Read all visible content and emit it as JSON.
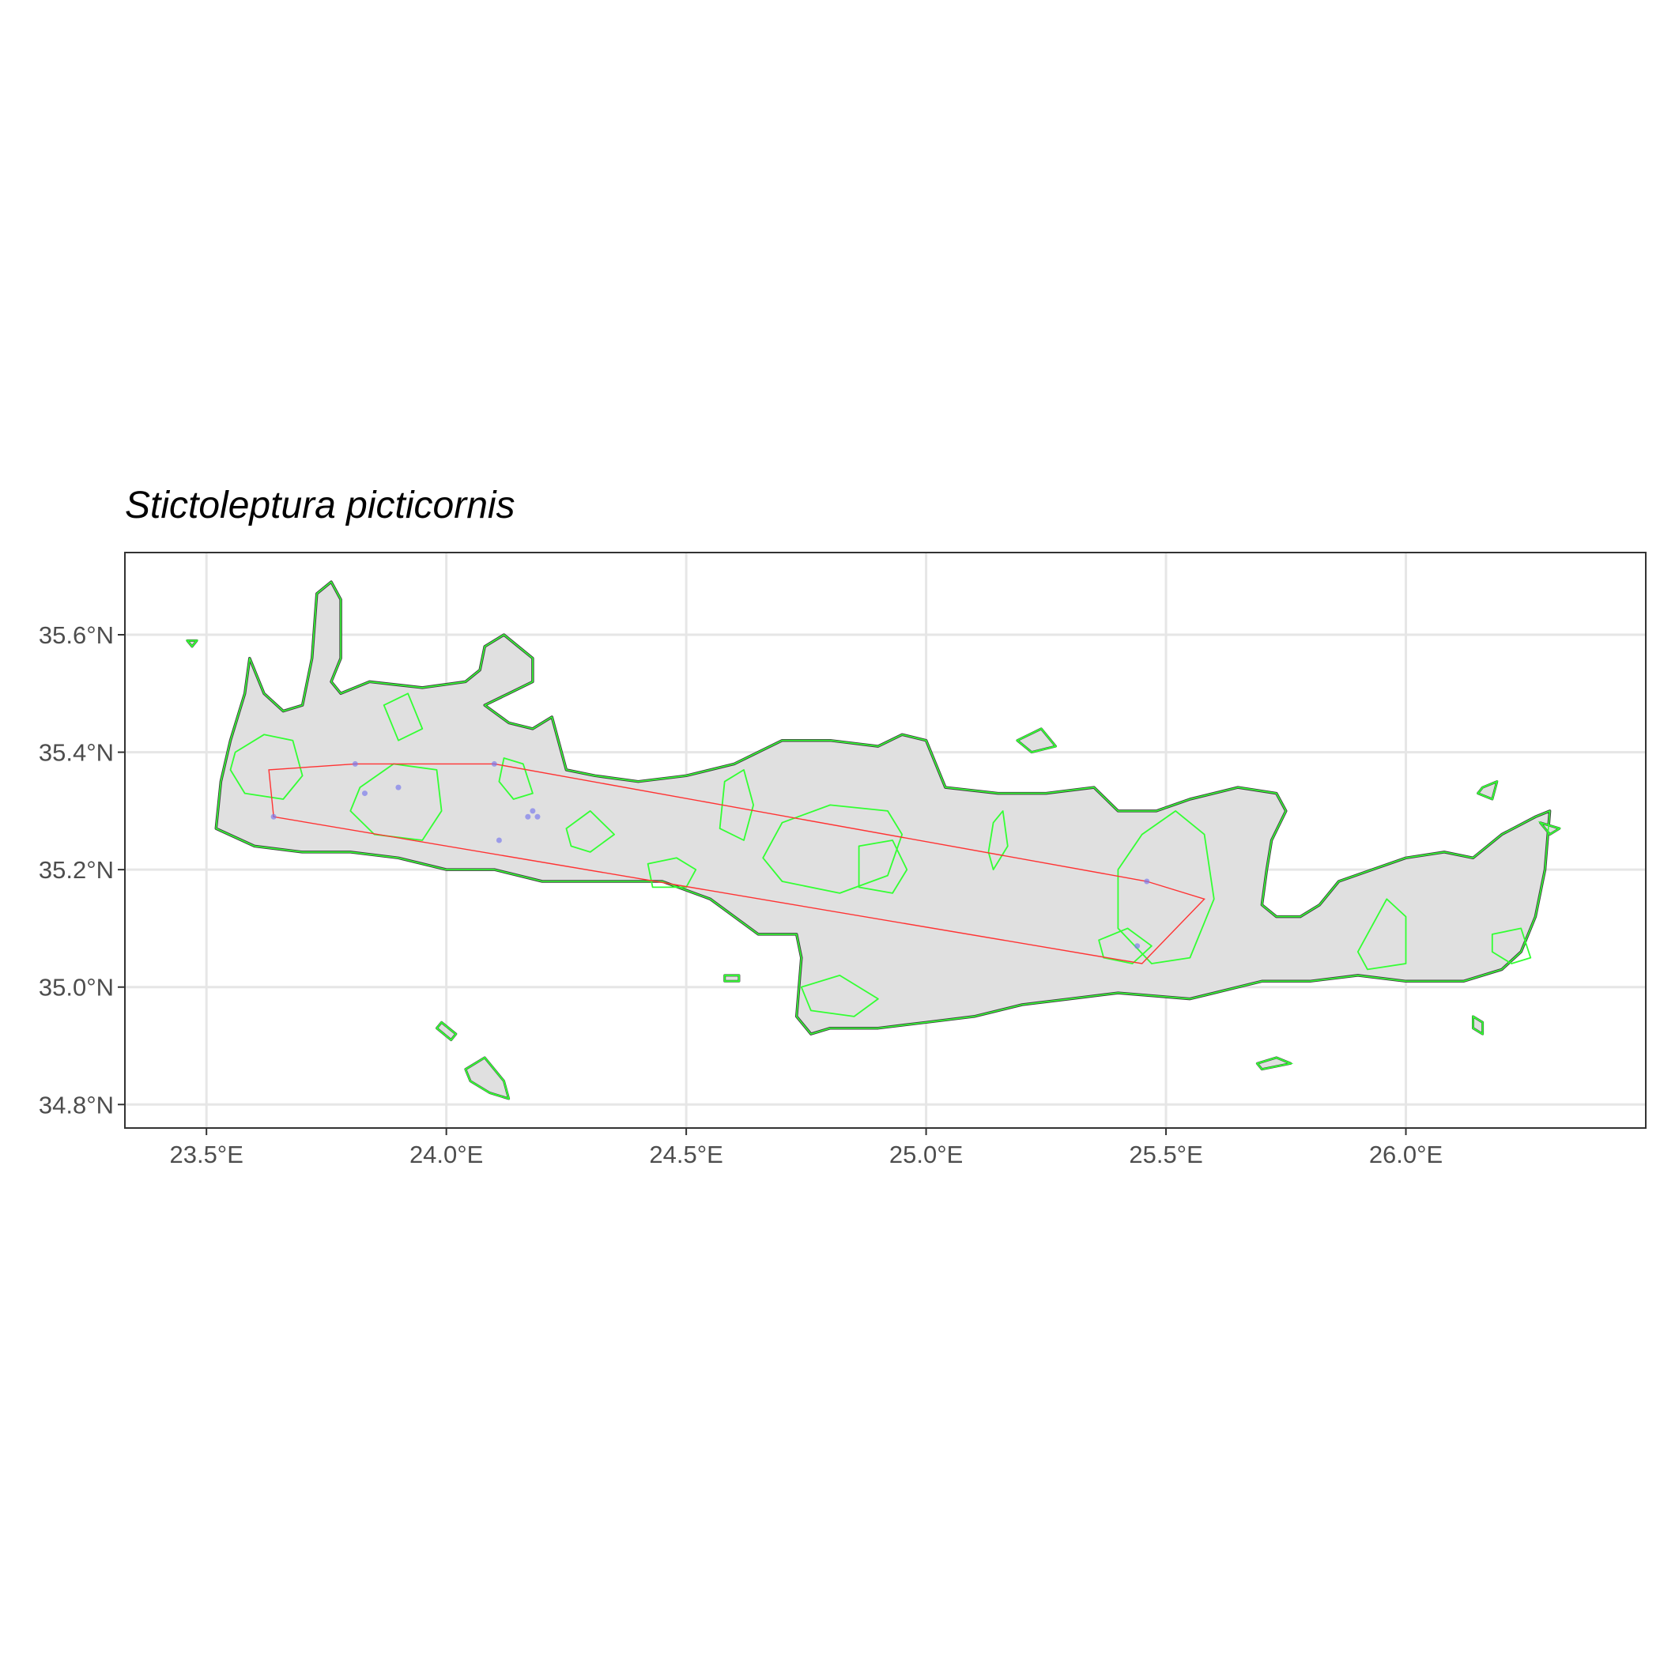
{
  "title": "Stictoleptura picticornis",
  "map": {
    "extent": {
      "lon_min": 23.33,
      "lon_max": 26.5,
      "lat_min": 34.76,
      "lat_max": 35.74
    },
    "x_ticks": [
      {
        "value": 23.5,
        "label": "23.5°E"
      },
      {
        "value": 24.0,
        "label": "24.0°E"
      },
      {
        "value": 24.5,
        "label": "24.5°E"
      },
      {
        "value": 25.0,
        "label": "25.0°E"
      },
      {
        "value": 25.5,
        "label": "25.5°E"
      },
      {
        "value": 26.0,
        "label": "26.0°E"
      }
    ],
    "y_ticks": [
      {
        "value": 34.8,
        "label": "34.8°N"
      },
      {
        "value": 35.0,
        "label": "35.0°N"
      },
      {
        "value": 35.2,
        "label": "35.2°N"
      },
      {
        "value": 35.4,
        "label": "35.4°N"
      },
      {
        "value": 35.6,
        "label": "35.6°N"
      }
    ],
    "grid": true,
    "colors": {
      "land_fill": "#e0e0e0",
      "coastline": "#404040",
      "protected_areas": "#33ff33",
      "range_hull": "#ff3333",
      "occurrences": "#7777ee",
      "gridline": "#e6e6e6",
      "panel_border": "#333333"
    },
    "crete_outline": [
      [
        23.59,
        35.56
      ],
      [
        23.62,
        35.5
      ],
      [
        23.66,
        35.47
      ],
      [
        23.7,
        35.48
      ],
      [
        23.72,
        35.56
      ],
      [
        23.73,
        35.67
      ],
      [
        23.76,
        35.69
      ],
      [
        23.78,
        35.66
      ],
      [
        23.78,
        35.56
      ],
      [
        23.76,
        35.52
      ],
      [
        23.78,
        35.5
      ],
      [
        23.84,
        35.52
      ],
      [
        23.95,
        35.51
      ],
      [
        24.04,
        35.52
      ],
      [
        24.07,
        35.54
      ],
      [
        24.08,
        35.58
      ],
      [
        24.12,
        35.6
      ],
      [
        24.15,
        35.58
      ],
      [
        24.18,
        35.56
      ],
      [
        24.18,
        35.52
      ],
      [
        24.13,
        35.5
      ],
      [
        24.08,
        35.48
      ],
      [
        24.13,
        35.45
      ],
      [
        24.18,
        35.44
      ],
      [
        24.22,
        35.46
      ],
      [
        24.25,
        35.37
      ],
      [
        24.31,
        35.36
      ],
      [
        24.4,
        35.35
      ],
      [
        24.5,
        35.36
      ],
      [
        24.6,
        35.38
      ],
      [
        24.7,
        35.42
      ],
      [
        24.8,
        35.42
      ],
      [
        24.9,
        35.41
      ],
      [
        24.95,
        35.43
      ],
      [
        25.0,
        35.42
      ],
      [
        25.04,
        35.34
      ],
      [
        25.15,
        35.33
      ],
      [
        25.25,
        35.33
      ],
      [
        25.35,
        35.34
      ],
      [
        25.4,
        35.3
      ],
      [
        25.48,
        35.3
      ],
      [
        25.55,
        35.32
      ],
      [
        25.65,
        35.34
      ],
      [
        25.73,
        35.33
      ],
      [
        25.75,
        35.3
      ],
      [
        25.72,
        35.25
      ],
      [
        25.71,
        35.2
      ],
      [
        25.7,
        35.14
      ],
      [
        25.73,
        35.12
      ],
      [
        25.78,
        35.12
      ],
      [
        25.82,
        35.14
      ],
      [
        25.86,
        35.18
      ],
      [
        25.93,
        35.2
      ],
      [
        26.0,
        35.22
      ],
      [
        26.08,
        35.23
      ],
      [
        26.14,
        35.22
      ],
      [
        26.2,
        35.26
      ],
      [
        26.27,
        35.29
      ],
      [
        26.3,
        35.3
      ],
      [
        26.29,
        35.2
      ],
      [
        26.27,
        35.12
      ],
      [
        26.24,
        35.06
      ],
      [
        26.2,
        35.03
      ],
      [
        26.12,
        35.01
      ],
      [
        26.0,
        35.01
      ],
      [
        25.9,
        35.02
      ],
      [
        25.8,
        35.01
      ],
      [
        25.7,
        35.01
      ],
      [
        25.55,
        34.98
      ],
      [
        25.4,
        34.99
      ],
      [
        25.3,
        34.98
      ],
      [
        25.2,
        34.97
      ],
      [
        25.1,
        34.95
      ],
      [
        25.0,
        34.94
      ],
      [
        24.9,
        34.93
      ],
      [
        24.8,
        34.93
      ],
      [
        24.76,
        34.92
      ],
      [
        24.73,
        34.95
      ],
      [
        24.74,
        35.05
      ],
      [
        24.73,
        35.09
      ],
      [
        24.65,
        35.09
      ],
      [
        24.55,
        35.15
      ],
      [
        24.45,
        35.18
      ],
      [
        24.35,
        35.18
      ],
      [
        24.2,
        35.18
      ],
      [
        24.1,
        35.2
      ],
      [
        24.0,
        35.2
      ],
      [
        23.9,
        35.22
      ],
      [
        23.8,
        35.23
      ],
      [
        23.7,
        35.23
      ],
      [
        23.6,
        35.24
      ],
      [
        23.52,
        35.27
      ],
      [
        23.53,
        35.35
      ],
      [
        23.55,
        35.42
      ],
      [
        23.58,
        35.5
      ]
    ],
    "islets": [
      [
        [
          23.98,
          34.93
        ],
        [
          24.01,
          34.91
        ],
        [
          24.02,
          34.92
        ],
        [
          23.99,
          34.94
        ]
      ],
      [
        [
          24.04,
          34.86
        ],
        [
          24.08,
          34.88
        ],
        [
          24.12,
          34.84
        ],
        [
          24.13,
          34.81
        ],
        [
          24.09,
          34.82
        ],
        [
          24.05,
          34.84
        ]
      ],
      [
        [
          24.58,
          35.02
        ],
        [
          24.61,
          35.02
        ],
        [
          24.61,
          35.01
        ],
        [
          24.58,
          35.01
        ]
      ],
      [
        [
          25.19,
          35.42
        ],
        [
          25.24,
          35.44
        ],
        [
          25.27,
          35.41
        ],
        [
          25.22,
          35.4
        ]
      ],
      [
        [
          25.69,
          34.87
        ],
        [
          25.73,
          34.88
        ],
        [
          25.76,
          34.87
        ],
        [
          25.7,
          34.86
        ]
      ],
      [
        [
          26.14,
          34.95
        ],
        [
          26.16,
          34.94
        ],
        [
          26.16,
          34.92
        ],
        [
          26.14,
          34.93
        ]
      ],
      [
        [
          26.16,
          35.34
        ],
        [
          26.19,
          35.35
        ],
        [
          26.18,
          35.32
        ],
        [
          26.15,
          35.33
        ]
      ],
      [
        [
          26.28,
          35.28
        ],
        [
          26.32,
          35.27
        ],
        [
          26.3,
          35.26
        ]
      ],
      [
        [
          23.46,
          35.59
        ],
        [
          23.48,
          35.59
        ],
        [
          23.47,
          35.58
        ]
      ]
    ],
    "protected_areas": [
      [
        [
          23.56,
          35.4
        ],
        [
          23.62,
          35.43
        ],
        [
          23.68,
          35.42
        ],
        [
          23.7,
          35.36
        ],
        [
          23.66,
          35.32
        ],
        [
          23.58,
          35.33
        ],
        [
          23.55,
          35.37
        ]
      ],
      [
        [
          23.82,
          35.34
        ],
        [
          23.89,
          35.38
        ],
        [
          23.98,
          35.37
        ],
        [
          23.99,
          35.3
        ],
        [
          23.95,
          35.25
        ],
        [
          23.85,
          35.26
        ],
        [
          23.8,
          35.3
        ]
      ],
      [
        [
          24.12,
          35.39
        ],
        [
          24.16,
          35.38
        ],
        [
          24.18,
          35.33
        ],
        [
          24.14,
          35.32
        ],
        [
          24.11,
          35.35
        ]
      ],
      [
        [
          24.25,
          35.27
        ],
        [
          24.3,
          35.3
        ],
        [
          24.35,
          35.26
        ],
        [
          24.3,
          35.23
        ],
        [
          24.26,
          35.24
        ]
      ],
      [
        [
          24.42,
          35.21
        ],
        [
          24.48,
          35.22
        ],
        [
          24.52,
          35.2
        ],
        [
          24.5,
          35.17
        ],
        [
          24.43,
          35.17
        ]
      ],
      [
        [
          24.58,
          35.35
        ],
        [
          24.62,
          35.37
        ],
        [
          24.64,
          35.31
        ],
        [
          24.62,
          35.25
        ],
        [
          24.57,
          35.27
        ]
      ],
      [
        [
          24.7,
          35.28
        ],
        [
          24.8,
          35.31
        ],
        [
          24.92,
          35.3
        ],
        [
          24.95,
          35.26
        ],
        [
          24.92,
          35.19
        ],
        [
          24.82,
          35.16
        ],
        [
          24.7,
          35.18
        ],
        [
          24.66,
          35.22
        ]
      ],
      [
        [
          24.86,
          35.24
        ],
        [
          24.93,
          35.25
        ],
        [
          24.96,
          35.2
        ],
        [
          24.93,
          35.16
        ],
        [
          24.86,
          35.17
        ]
      ],
      [
        [
          25.4,
          35.2
        ],
        [
          25.45,
          35.26
        ],
        [
          25.52,
          35.3
        ],
        [
          25.58,
          35.26
        ],
        [
          25.6,
          35.15
        ],
        [
          25.55,
          35.05
        ],
        [
          25.47,
          35.04
        ],
        [
          25.4,
          35.1
        ]
      ],
      [
        [
          25.36,
          35.08
        ],
        [
          25.42,
          35.1
        ],
        [
          25.47,
          35.07
        ],
        [
          25.43,
          35.04
        ],
        [
          25.37,
          35.05
        ]
      ],
      [
        [
          25.9,
          35.06
        ],
        [
          25.96,
          35.15
        ],
        [
          26.0,
          35.12
        ],
        [
          26.0,
          35.04
        ],
        [
          25.92,
          35.03
        ]
      ],
      [
        [
          26.18,
          35.09
        ],
        [
          26.24,
          35.1
        ],
        [
          26.26,
          35.05
        ],
        [
          26.22,
          35.04
        ],
        [
          26.18,
          35.06
        ]
      ],
      [
        [
          24.74,
          35.0
        ],
        [
          24.82,
          35.02
        ],
        [
          24.9,
          34.98
        ],
        [
          24.85,
          34.95
        ],
        [
          24.76,
          34.96
        ]
      ],
      [
        [
          25.14,
          35.28
        ],
        [
          25.16,
          35.3
        ],
        [
          25.17,
          35.24
        ],
        [
          25.14,
          35.2
        ],
        [
          25.13,
          35.23
        ]
      ],
      [
        [
          23.87,
          35.48
        ],
        [
          23.92,
          35.5
        ],
        [
          23.95,
          35.44
        ],
        [
          23.9,
          35.42
        ]
      ]
    ],
    "range_hull": [
      [
        23.64,
        35.29
      ],
      [
        23.63,
        35.37
      ],
      [
        23.81,
        35.38
      ],
      [
        24.1,
        35.38
      ],
      [
        25.46,
        35.18
      ],
      [
        25.58,
        35.15
      ],
      [
        25.45,
        35.04
      ]
    ],
    "occurrences": [
      [
        23.64,
        35.29
      ],
      [
        23.81,
        35.38
      ],
      [
        23.83,
        35.33
      ],
      [
        23.9,
        35.34
      ],
      [
        24.1,
        35.38
      ],
      [
        24.11,
        35.25
      ],
      [
        24.17,
        35.29
      ],
      [
        24.18,
        35.3
      ],
      [
        24.19,
        35.29
      ],
      [
        25.44,
        35.07
      ],
      [
        25.46,
        35.18
      ]
    ]
  }
}
